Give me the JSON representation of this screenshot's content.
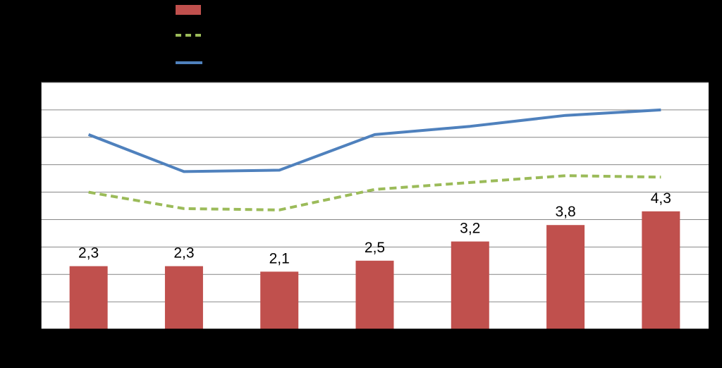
{
  "chart_data": {
    "type": "bar",
    "categories": [
      "",
      "",
      "",
      "",
      "",
      "",
      ""
    ],
    "ylim": [
      0,
      9
    ],
    "grid": true,
    "legend_position": "top-left",
    "series": [
      {
        "type": "bar",
        "values": [
          2.3,
          2.3,
          2.1,
          2.5,
          3.2,
          3.8,
          4.3
        ],
        "data_labels": [
          "2,3",
          "2,3",
          "2,1",
          "2,5",
          "3,2",
          "3,8",
          "4,3"
        ],
        "color": "#C0504D"
      },
      {
        "type": "line",
        "style": "dashed",
        "values": [
          5.0,
          4.4,
          4.35,
          5.1,
          5.35,
          5.6,
          5.55
        ],
        "color": "#9BBB59"
      },
      {
        "type": "line",
        "style": "solid",
        "values": [
          7.1,
          5.75,
          5.8,
          7.1,
          7.4,
          7.8,
          8.0
        ],
        "color": "#4F81BD"
      }
    ]
  },
  "colors": {
    "background": "#000000",
    "plot_area": "#FFFFFF",
    "gridline": "#868686",
    "axis": "#000000"
  }
}
